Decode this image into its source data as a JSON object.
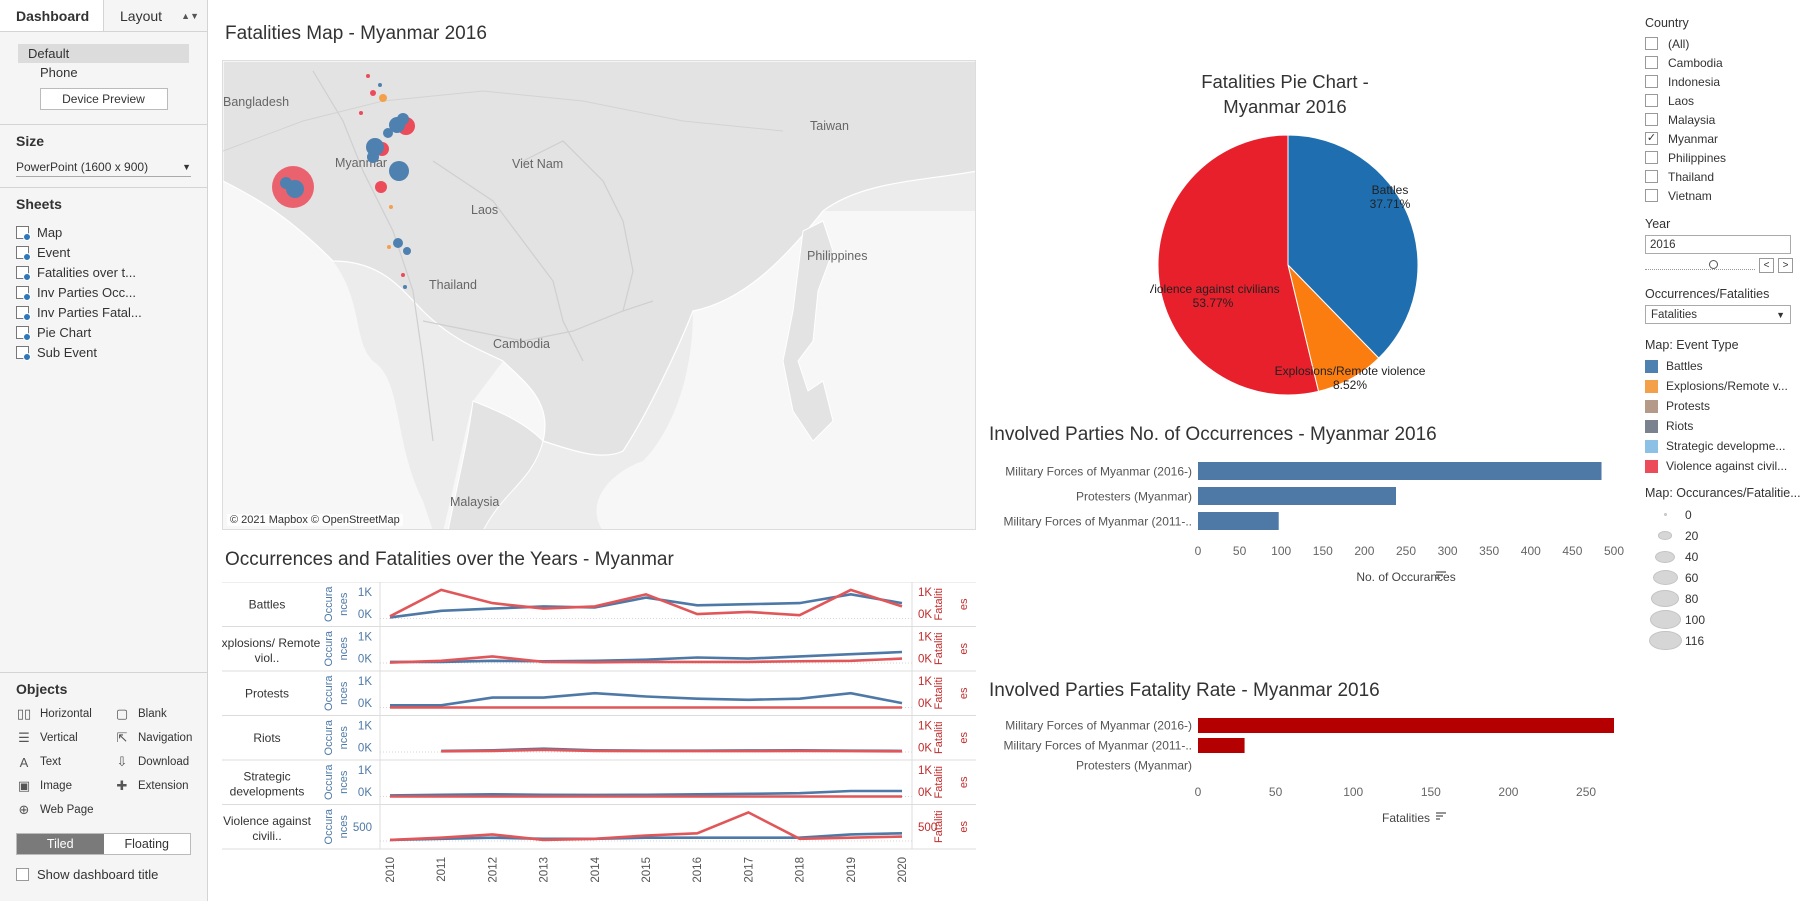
{
  "left_panel": {
    "tabs": [
      "Dashboard",
      "Layout"
    ],
    "devices": [
      "Default",
      "Phone"
    ],
    "device_preview_label": "Device Preview",
    "size_title": "Size",
    "size_value": "PowerPoint (1600 x 900)",
    "sheets_title": "Sheets",
    "sheets": [
      "Map",
      "Event",
      "Fatalities over t...",
      "Inv Parties Occ...",
      "Inv Parties Fatal...",
      "Pie Chart",
      "Sub Event"
    ],
    "objects_title": "Objects",
    "objects": [
      {
        "label": "Horizontal",
        "icon": "horizontal-icon",
        "glyph": "▯▯"
      },
      {
        "label": "Blank",
        "icon": "blank-icon",
        "glyph": "▢"
      },
      {
        "label": "Vertical",
        "icon": "vertical-icon",
        "glyph": "☰"
      },
      {
        "label": "Navigation",
        "icon": "navigation-icon",
        "glyph": "⇱"
      },
      {
        "label": "Text",
        "icon": "text-icon",
        "glyph": "A"
      },
      {
        "label": "Download",
        "icon": "download-icon",
        "glyph": "⇩"
      },
      {
        "label": "Image",
        "icon": "image-icon",
        "glyph": "▣"
      },
      {
        "label": "Extension",
        "icon": "extension-icon",
        "glyph": "✚"
      },
      {
        "label": "Web Page",
        "icon": "globe-icon",
        "glyph": "⊕"
      }
    ],
    "layout_modes": [
      "Tiled",
      "Floating"
    ],
    "show_title_label": "Show dashboard title"
  },
  "map": {
    "title": "Fatalities Map - Myanmar  2016",
    "labels": [
      {
        "text": "Bangladesh"
      },
      {
        "text": "Myanmar"
      },
      {
        "text": "Viet Nam"
      },
      {
        "text": "Laos"
      },
      {
        "text": "Taiwan"
      },
      {
        "text": "Thailand"
      },
      {
        "text": "Philippines"
      },
      {
        "text": "Cambodia"
      },
      {
        "text": "Malaysia"
      }
    ],
    "copyright": "© 2021 Mapbox © OpenStreetMap"
  },
  "pie": {
    "title_line1": "Fatalities Pie Chart -",
    "title_line2": "Myanmar 2016"
  },
  "occ_bar": {
    "title": "Involved Parties No. of Occurrences - Myanmar 2016",
    "axis_title": "No. of Occurances"
  },
  "fat_bar": {
    "title": "Involved Parties Fatality Rate - Myanmar 2016",
    "axis_title": "Fatalities"
  },
  "trend": {
    "title": "Occurrences and Fatalities over the Years - Myanmar",
    "rows": [
      "Battles",
      "Explosions/ Remote viol..",
      "Protests",
      "Riots",
      "Strategic developments",
      "Violence against civili.."
    ]
  },
  "filters": {
    "country_title": "Country",
    "countries": [
      {
        "name": "(All)",
        "checked": false
      },
      {
        "name": "Cambodia",
        "checked": false
      },
      {
        "name": "Indonesia",
        "checked": false
      },
      {
        "name": "Laos",
        "checked": false
      },
      {
        "name": "Malaysia",
        "checked": false
      },
      {
        "name": "Myanmar",
        "checked": true
      },
      {
        "name": "Philippines",
        "checked": false
      },
      {
        "name": "Thailand",
        "checked": false
      },
      {
        "name": "Vietnam",
        "checked": false
      }
    ],
    "year_title": "Year",
    "year_value": "2016",
    "occfat_title": "Occurrences/Fatalities",
    "occfat_value": "Fatalities",
    "event_type_title": "Map: Event Type",
    "event_types": [
      {
        "label": "Battles",
        "color": "#4e81b0"
      },
      {
        "label": "Explosions/Remote v...",
        "color": "#f4a04a"
      },
      {
        "label": "Protests",
        "color": "#b59a8a"
      },
      {
        "label": "Riots",
        "color": "#7a8290"
      },
      {
        "label": "Strategic developme...",
        "color": "#8cc0e4"
      },
      {
        "label": "Violence against civil...",
        "color": "#ec4b5a"
      }
    ],
    "size_title": "Map: Occurances/Fatalitie...",
    "size_values": [
      "0",
      "20",
      "40",
      "60",
      "80",
      "100",
      "116"
    ]
  },
  "chart_data": [
    {
      "type": "pie",
      "title": "Fatalities Pie Chart - Myanmar 2016",
      "slices": [
        {
          "label": "Battles",
          "value": 37.71,
          "display": "37.71%",
          "color": "#1f6fb0"
        },
        {
          "label": "Explosions/Remote violence",
          "value": 8.52,
          "display": "8.52%",
          "color": "#fb7d10"
        },
        {
          "label": "Violence against civilians",
          "value": 53.77,
          "display": "53.77%",
          "color": "#e8202c"
        }
      ]
    },
    {
      "type": "bar",
      "orientation": "horizontal",
      "title": "Involved Parties No. of Occurrences - Myanmar 2016",
      "categories": [
        "Military Forces of Myanmar (2016-)",
        "Protesters (Myanmar)",
        "Military Forces of Myanmar (2011-.."
      ],
      "values": [
        485,
        238,
        97
      ],
      "xlabel": "No. of Occurances",
      "xlim": [
        0,
        500
      ],
      "ticks": [
        0,
        50,
        100,
        150,
        200,
        250,
        300,
        350,
        400,
        450,
        500
      ],
      "color": "#4e79a7"
    },
    {
      "type": "bar",
      "orientation": "horizontal",
      "title": "Involved Parties Fatality Rate - Myanmar 2016",
      "categories": [
        "Military Forces of Myanmar (2016-)",
        "Military Forces of Myanmar (2011-..",
        "Protesters (Myanmar)"
      ],
      "values": [
        268,
        30,
        0
      ],
      "xlabel": "Fatalities",
      "xlim": [
        0,
        268
      ],
      "ticks": [
        0,
        50,
        100,
        150,
        200,
        250
      ],
      "color": "#b40000"
    },
    {
      "type": "line",
      "title": "Occurrences and Fatalities over the Years - Myanmar",
      "x": [
        2010,
        2011,
        2012,
        2013,
        2014,
        2015,
        2016,
        2017,
        2018,
        2019,
        2020
      ],
      "left_axis_label": "Occurances",
      "right_axis_label": "Fatalities",
      "panels": [
        {
          "name": "Battles",
          "ticks": [
            "1K",
            "0K"
          ],
          "occ": [
            0.05,
            0.35,
            0.45,
            0.55,
            0.5,
            0.95,
            0.6,
            0.65,
            0.7,
            1.1,
            0.7
          ],
          "fat": [
            0.1,
            1.3,
            0.7,
            0.45,
            0.55,
            1.1,
            0.2,
            0.3,
            0.15,
            1.3,
            0.55
          ]
        },
        {
          "name": "Explosions/ Remote viol..",
          "ticks": [
            "1K",
            "0K"
          ],
          "occ": [
            0.05,
            0.05,
            0.1,
            0.08,
            0.1,
            0.15,
            0.25,
            0.2,
            0.3,
            0.4,
            0.5
          ],
          "fat": [
            0.02,
            0.1,
            0.3,
            0.05,
            0.03,
            0.05,
            0.05,
            0.05,
            0.08,
            0.1,
            0.2
          ]
        },
        {
          "name": "Protests",
          "ticks": [
            "1K",
            "0K"
          ],
          "occ": [
            0.1,
            0.1,
            0.45,
            0.45,
            0.65,
            0.5,
            0.4,
            0.35,
            0.4,
            0.65,
            0.2
          ],
          "fat": [
            0,
            0,
            0,
            0,
            0,
            0,
            0,
            0,
            0,
            0,
            0
          ]
        },
        {
          "name": "Riots",
          "ticks": [
            "1K",
            "0K"
          ],
          "occ": [
            null,
            0.05,
            0.08,
            0.15,
            0.08,
            0.06,
            0.06,
            0.07,
            0.08,
            0.06,
            0.05
          ],
          "fat": [
            null,
            0.03,
            0.05,
            0.1,
            0.05,
            0.04,
            0.04,
            0.04,
            0.05,
            0.04,
            0.03
          ]
        },
        {
          "name": "Strategic developments",
          "ticks": [
            "1K",
            "0K"
          ],
          "occ": [
            0.05,
            0.08,
            0.1,
            0.08,
            0.07,
            0.08,
            0.1,
            0.12,
            0.15,
            0.25,
            0.25
          ],
          "fat": [
            0,
            0,
            0,
            0,
            0,
            0,
            0,
            0,
            0,
            0,
            0
          ]
        },
        {
          "name": "Violence against civili..",
          "ticks": [
            "500"
          ],
          "occ": [
            0.05,
            0.1,
            0.15,
            0.1,
            0.1,
            0.15,
            0.15,
            0.15,
            0.15,
            0.3,
            0.35
          ],
          "fat": [
            0.05,
            0.15,
            0.3,
            0.05,
            0.1,
            0.25,
            0.35,
            1.3,
            0.1,
            0.15,
            0.2
          ]
        }
      ],
      "colors": {
        "occ": "#4e79a7",
        "fat": "#e15759"
      }
    }
  ]
}
